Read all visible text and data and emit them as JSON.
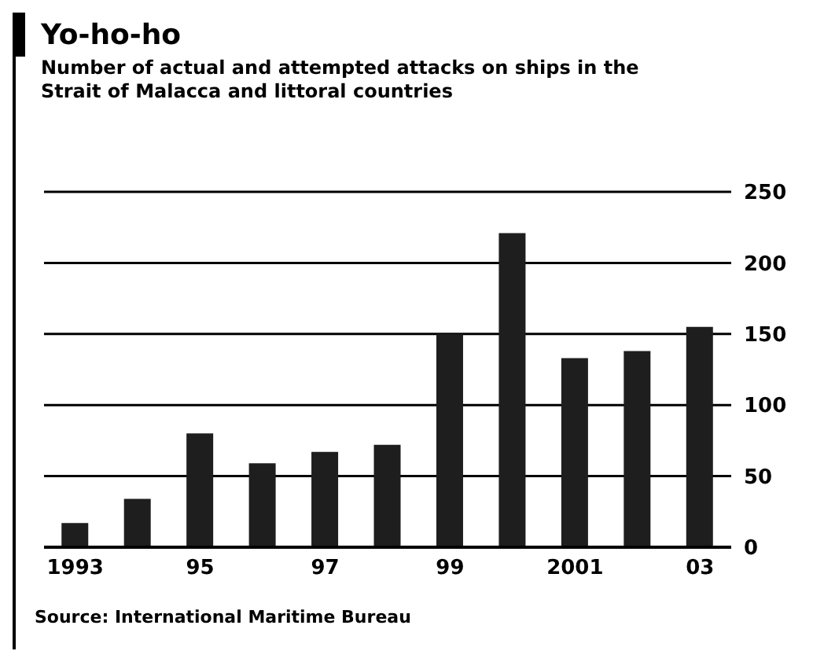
{
  "chart_data": {
    "type": "bar",
    "title": "Yo-ho-ho",
    "subtitle": "Number of actual and attempted attacks on ships in the Strait of Malacca and littoral countries",
    "categories": [
      "1993",
      null,
      "95",
      null,
      "97",
      null,
      "99",
      null,
      "2001",
      null,
      "03"
    ],
    "values": [
      17,
      34,
      80,
      59,
      67,
      72,
      150,
      221,
      133,
      138,
      155
    ],
    "color": "#1e1e1e",
    "ylim": [
      0,
      250
    ],
    "yticks": [
      0,
      50,
      100,
      150,
      200,
      250
    ],
    "grid": "y",
    "annotations": [
      "Source: International Maritime Bureau"
    ]
  }
}
